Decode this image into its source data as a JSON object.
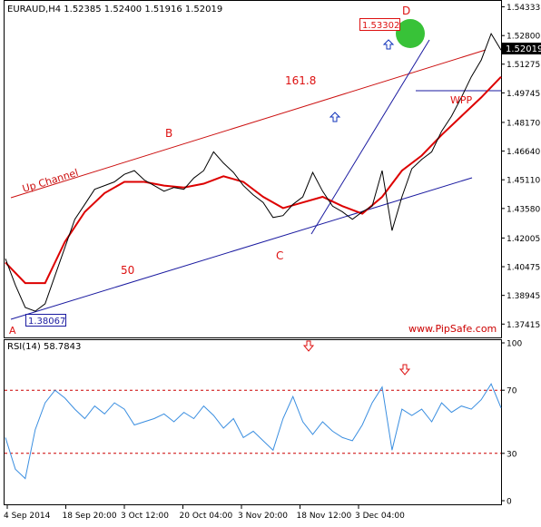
{
  "chart_data": [
    {
      "type": "line",
      "title": "EURAUD,H4  1.52385 1.52400 1.51916 1.52019",
      "symbol": "EURAUD",
      "timeframe": "H4",
      "ohlc": {
        "open": 1.52385,
        "high": 1.524,
        "low": 1.51916,
        "close": 1.52019
      },
      "ylim": [
        1.368,
        1.546
      ],
      "yticks": [
        "1.54333",
        "1.52800",
        "1.51275",
        "1.49745",
        "1.48170",
        "1.46640",
        "1.45110",
        "1.43580",
        "1.42005",
        "1.40475",
        "1.38945",
        "1.37415"
      ],
      "current_price_label": "1.52019",
      "xticks": [
        "4 Sep 2014",
        "18 Sep 20:00",
        "3 Oct 12:00",
        "20 Oct 04:00",
        "3 Nov 20:00",
        "18 Nov 12:00",
        "3 Dec 04:00"
      ],
      "colors": {
        "price": "#000000",
        "moving_average": "#dd0000",
        "up_channel": "#cc1111",
        "lower_channel": "#1a1aa0",
        "annotation_red": "#dd1111",
        "arrow_blue": "#1133bb",
        "highlight_circle": "#22bb22",
        "watermark": "#cc0000"
      },
      "series": [
        {
          "name": "",
          "role": "price",
          "x": [
            0,
            2,
            4,
            6,
            8,
            10,
            12,
            14,
            16,
            18,
            20,
            22,
            24,
            26,
            28,
            30,
            32,
            34,
            36,
            38,
            40,
            42,
            44,
            46,
            48,
            50,
            52,
            54,
            56,
            58,
            60,
            62,
            64,
            66,
            68,
            70,
            72,
            74,
            76,
            78,
            80,
            82,
            84,
            86,
            88,
            90,
            92,
            94,
            96,
            98,
            100
          ],
          "values": [
            1.409,
            1.395,
            1.383,
            1.381,
            1.385,
            1.4,
            1.415,
            1.43,
            1.438,
            1.446,
            1.448,
            1.45,
            1.454,
            1.456,
            1.451,
            1.448,
            1.445,
            1.447,
            1.446,
            1.452,
            1.456,
            1.466,
            1.46,
            1.455,
            1.448,
            1.443,
            1.439,
            1.431,
            1.432,
            1.438,
            1.442,
            1.455,
            1.445,
            1.437,
            1.434,
            1.43,
            1.434,
            1.437,
            1.456,
            1.424,
            1.442,
            1.457,
            1.462,
            1.466,
            1.477,
            1.485,
            1.495,
            1.506,
            1.515,
            1.529,
            1.5202
          ]
        },
        {
          "name": "",
          "role": "moving_average",
          "x": [
            0,
            4,
            8,
            12,
            16,
            20,
            24,
            28,
            32,
            36,
            40,
            44,
            48,
            52,
            56,
            60,
            64,
            68,
            72,
            76,
            80,
            84,
            88,
            92,
            96,
            100
          ],
          "values": [
            1.407,
            1.396,
            1.396,
            1.418,
            1.434,
            1.444,
            1.45,
            1.45,
            1.448,
            1.447,
            1.449,
            1.453,
            1.45,
            1.442,
            1.436,
            1.439,
            1.442,
            1.437,
            1.433,
            1.442,
            1.456,
            1.464,
            1.475,
            1.485,
            1.495,
            1.506
          ]
        }
      ],
      "annotations": {
        "up_channel_label": "Up Channel",
        "fib_label_upper": "161.8",
        "fib_label_lower": "50",
        "wpp_label": "WPP",
        "point_labels": [
          "A",
          "B",
          "C",
          "D"
        ],
        "low_price_label": "1.38067",
        "high_price_label": "1.53302",
        "watermark": "www.PipSafe.com"
      }
    },
    {
      "type": "line",
      "title": "RSI(14) 58.7843",
      "ylim": [
        0,
        100
      ],
      "yticks": [
        "100",
        "70",
        "30",
        "0"
      ],
      "levels": [
        70,
        30
      ],
      "series": [
        {
          "name": "",
          "role": "rsi",
          "x": [
            0,
            2,
            4,
            6,
            8,
            10,
            12,
            14,
            16,
            18,
            20,
            22,
            24,
            26,
            28,
            30,
            32,
            34,
            36,
            38,
            40,
            42,
            44,
            46,
            48,
            50,
            52,
            54,
            56,
            58,
            60,
            62,
            64,
            66,
            68,
            70,
            72,
            74,
            76,
            78,
            80,
            82,
            84,
            86,
            88,
            90,
            92,
            94,
            96,
            98,
            100
          ],
          "values": [
            40,
            20,
            14,
            45,
            62,
            70,
            65,
            58,
            52,
            60,
            55,
            62,
            58,
            48,
            50,
            52,
            55,
            50,
            56,
            52,
            60,
            54,
            46,
            52,
            40,
            44,
            38,
            32,
            52,
            66,
            50,
            42,
            50,
            44,
            40,
            38,
            48,
            62,
            72,
            32,
            58,
            54,
            58,
            50,
            62,
            56,
            60,
            58,
            64,
            74,
            58.8
          ]
        }
      ]
    }
  ]
}
